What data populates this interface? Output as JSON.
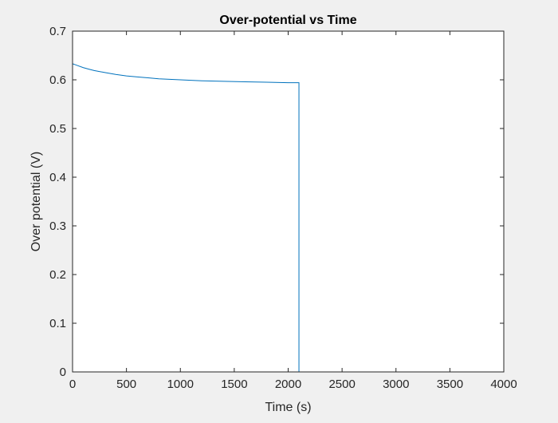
{
  "chart_data": {
    "type": "line",
    "title": "Over-potential vs Time",
    "xlabel": "Time (s)",
    "ylabel": "Over potential (V)",
    "xlim": [
      0,
      4000
    ],
    "ylim": [
      0,
      0.7
    ],
    "xticks": [
      0,
      500,
      1000,
      1500,
      2000,
      2500,
      3000,
      3500,
      4000
    ],
    "xtick_labels": [
      "0",
      "500",
      "1000",
      "1500",
      "2000",
      "2500",
      "3000",
      "3500",
      "4000"
    ],
    "yticks": [
      0,
      0.1,
      0.2,
      0.3,
      0.4,
      0.5,
      0.6,
      0.7
    ],
    "ytick_labels": [
      "0",
      "0.1",
      "0.2",
      "0.3",
      "0.4",
      "0.5",
      "0.6",
      "0.7"
    ],
    "grid": false,
    "series": [
      {
        "color": "#0072bd",
        "x": [
          0,
          0,
          25,
          50,
          100,
          150,
          200,
          300,
          400,
          500,
          600,
          700,
          800,
          900,
          1000,
          1200,
          1400,
          1600,
          1800,
          2000,
          2100,
          2100,
          2200,
          2500,
          3000,
          3600
        ],
        "y": [
          0,
          0.633,
          0.631,
          0.629,
          0.625,
          0.622,
          0.619,
          0.615,
          0.611,
          0.608,
          0.606,
          0.604,
          0.602,
          0.601,
          0.6,
          0.598,
          0.597,
          0.596,
          0.595,
          0.594,
          0.594,
          0,
          0,
          0,
          0,
          0
        ]
      }
    ]
  }
}
